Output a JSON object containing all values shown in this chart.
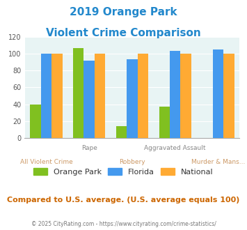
{
  "title_line1": "2019 Orange Park",
  "title_line2": "Violent Crime Comparison",
  "categories_top": [
    "",
    "Rape",
    "",
    "Aggravated Assault",
    ""
  ],
  "categories_bot": [
    "All Violent Crime",
    "",
    "Robbery",
    "",
    "Murder & Mans..."
  ],
  "orange_park": [
    40,
    107,
    14,
    37,
    0
  ],
  "florida": [
    100,
    92,
    93,
    103,
    105
  ],
  "national": [
    100,
    100,
    100,
    100,
    100
  ],
  "color_orange_park": "#80c020",
  "color_florida": "#4499ee",
  "color_national": "#ffaa33",
  "color_title": "#2288cc",
  "color_bg": "#e8f4f4",
  "color_compare_text": "#cc6600",
  "color_footer": "#777777",
  "color_footer_link": "#4499ee",
  "ylim": [
    0,
    120
  ],
  "yticks": [
    0,
    20,
    40,
    60,
    80,
    100,
    120
  ],
  "footnote": "Compared to U.S. average. (U.S. average equals 100)",
  "footer": "© 2025 CityRating.com - https://www.cityrating.com/crime-statistics/",
  "legend_labels": [
    "Orange Park",
    "Florida",
    "National"
  ]
}
